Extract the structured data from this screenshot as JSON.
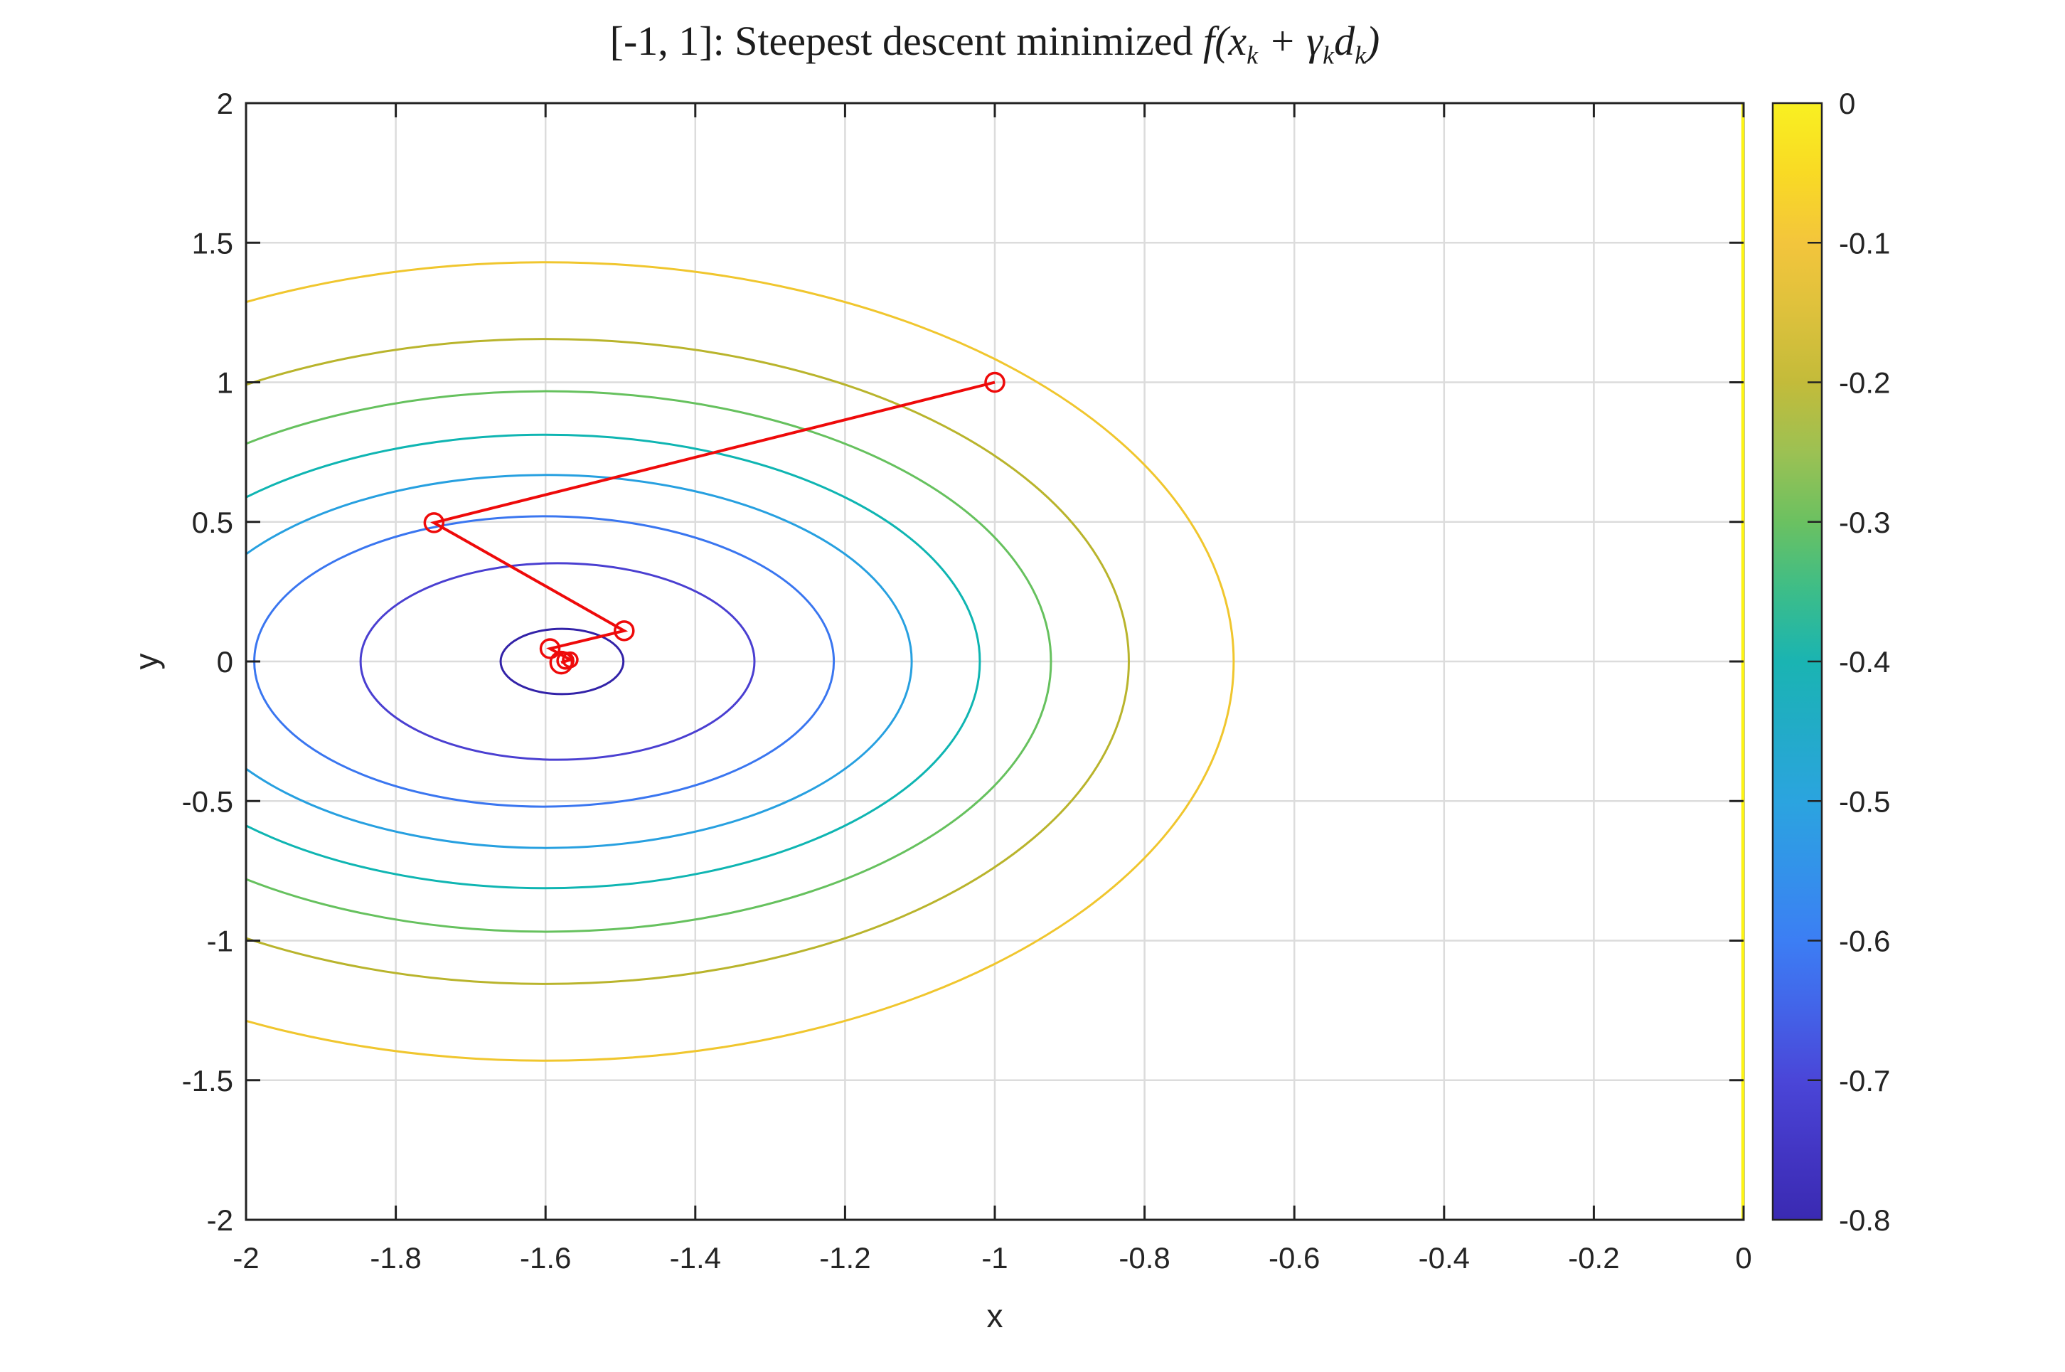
{
  "figure": {
    "background": "#ffffff",
    "title": {
      "prefix": "[-1, 1]: Steepest descent minimized ",
      "math_f": "f(x",
      "sub1": "k",
      "math_plus": " + γ",
      "sub2": "k",
      "math_d": "d",
      "sub3": "k",
      "math_close": ")"
    },
    "xlabel": "x",
    "ylabel": "y"
  },
  "chart_data": {
    "type": "contour",
    "title": "[-1, 1]: Steepest descent minimized f(x_k + γ_k d_k)",
    "xlabel": "x",
    "ylabel": "y",
    "xlim": [
      -2,
      0
    ],
    "ylim": [
      -2,
      2
    ],
    "grid": true,
    "axis_color": "#222222",
    "grid_color": "#dcdcdc",
    "x_ticks": {
      "values": [
        -2,
        -1.8,
        -1.6,
        -1.4,
        -1.2,
        -1,
        -0.8,
        -0.6,
        -0.4,
        -0.2,
        0
      ],
      "labels": [
        "-2",
        "-1.8",
        "-1.6",
        "-1.4",
        "-1.2",
        "-1",
        "-0.8",
        "-0.6",
        "-0.4",
        "-0.2",
        "0"
      ]
    },
    "y_ticks": {
      "values": [
        -2,
        -1.5,
        -1,
        -0.5,
        0,
        0.5,
        1,
        1.5,
        2
      ],
      "labels": [
        "-2",
        "-1.5",
        "-1",
        "-0.5",
        "0",
        "0.5",
        "1",
        "1.5",
        "2"
      ]
    },
    "contour_levels": [
      {
        "level": -0.8,
        "cx": -1.578,
        "cy": 0,
        "rx": 0.082,
        "ry": 0.117,
        "color": "#3222a8"
      },
      {
        "level": -0.7,
        "cx": -1.584,
        "cy": 0,
        "rx": 0.263,
        "ry": 0.352,
        "color": "#4a3fd1"
      },
      {
        "level": -0.6,
        "cx": -1.602,
        "cy": 0,
        "rx": 0.387,
        "ry": 0.52,
        "color": "#3a76f0"
      },
      {
        "level": -0.5,
        "cx": -1.6,
        "cy": 0,
        "rx": 0.489,
        "ry": 0.668,
        "color": "#27a0e0"
      },
      {
        "level": -0.4,
        "cx": -1.6,
        "cy": 0,
        "rx": 0.58,
        "ry": 0.812,
        "color": "#0fb5b2"
      },
      {
        "level": -0.3,
        "cx": -1.6,
        "cy": 0,
        "rx": 0.675,
        "ry": 0.968,
        "color": "#66c15e"
      },
      {
        "level": -0.2,
        "cx": -1.6,
        "cy": 0,
        "rx": 0.779,
        "ry": 1.155,
        "color": "#b9b42c"
      },
      {
        "level": -0.1,
        "cx": -1.6,
        "cy": 0,
        "rx": 0.919,
        "ry": 1.43,
        "color": "#f0c62e"
      }
    ],
    "edge_contour": {
      "level": 0,
      "x": 0,
      "color": "#fdf414"
    },
    "descent_path": {
      "color": "#ee0a0a",
      "points": [
        [
          -1,
          1
        ],
        [
          -1.749,
          0.497
        ],
        [
          -1.495,
          0.11
        ],
        [
          -1.594,
          0.046
        ],
        [
          -1.567,
          0.006
        ],
        [
          -1.579,
          -0.004
        ],
        [
          -1.5735,
          0.003
        ]
      ],
      "marker_radii_px": [
        13,
        13,
        13,
        13,
        10,
        15,
        11
      ]
    },
    "colorbar": {
      "range": [
        0,
        -0.8
      ],
      "ticks": {
        "values": [
          0,
          -0.1,
          -0.2,
          -0.3,
          -0.4,
          -0.5,
          -0.6,
          -0.7,
          -0.8
        ],
        "labels": [
          "0",
          "-0.1",
          "-0.2",
          "-0.3",
          "-0.4",
          "-0.5",
          "-0.6",
          "-0.7",
          "-0.8"
        ]
      },
      "gradient": [
        {
          "offset": 0.0,
          "color": "#f9f021"
        },
        {
          "offset": 0.0625,
          "color": "#f9da24"
        },
        {
          "offset": 0.125,
          "color": "#f3c53c"
        },
        {
          "offset": 0.1875,
          "color": "#ddc13c"
        },
        {
          "offset": 0.25,
          "color": "#c3bb3a"
        },
        {
          "offset": 0.3125,
          "color": "#9cc153"
        },
        {
          "offset": 0.375,
          "color": "#6bc161"
        },
        {
          "offset": 0.4375,
          "color": "#3cbd89"
        },
        {
          "offset": 0.5,
          "color": "#1ab4b2"
        },
        {
          "offset": 0.5625,
          "color": "#22abc8"
        },
        {
          "offset": 0.625,
          "color": "#2ba4df"
        },
        {
          "offset": 0.6875,
          "color": "#3392ea"
        },
        {
          "offset": 0.75,
          "color": "#3c7ef4"
        },
        {
          "offset": 0.8125,
          "color": "#4363e8"
        },
        {
          "offset": 0.875,
          "color": "#4a46d8"
        },
        {
          "offset": 0.9375,
          "color": "#4336c4"
        },
        {
          "offset": 1.0,
          "color": "#3a2ab2"
        }
      ]
    }
  }
}
